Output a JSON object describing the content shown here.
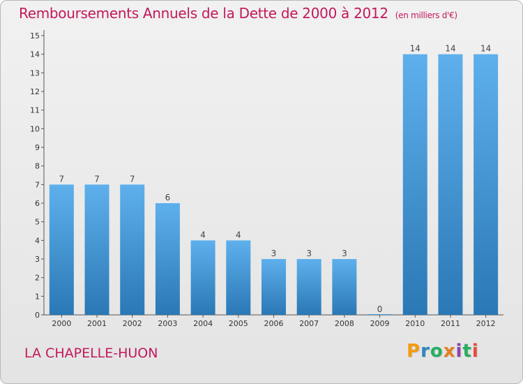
{
  "header": {
    "title": "Remboursements Annuels de la Dette de 2000 à 2012",
    "unit": "(en milliers d'€)"
  },
  "footer": {
    "city": "LA CHAPELLE-HUON",
    "logo_letters": [
      "P",
      "r",
      "o",
      "x",
      "i",
      "t",
      "i"
    ]
  },
  "colors": {
    "title": "#c2185b",
    "bar_top": "#5eb0ec",
    "bar_bottom": "#2a78b5",
    "logo": [
      "#f39c12",
      "#2e86c1",
      "#27ae60",
      "#e67e22",
      "#8e44ad",
      "#27ae60",
      "#e74c3c"
    ]
  },
  "chart_data": {
    "type": "bar",
    "title": "Remboursements Annuels de la Dette de 2000 à 2012",
    "xlabel": "",
    "ylabel": "(en milliers d'€)",
    "categories": [
      "2000",
      "2001",
      "2002",
      "2003",
      "2004",
      "2005",
      "2006",
      "2007",
      "2008",
      "2009",
      "2010",
      "2011",
      "2012"
    ],
    "values": [
      7,
      7,
      7,
      6,
      4,
      4,
      3,
      3,
      3,
      0,
      14,
      14,
      14
    ],
    "ylim": [
      0,
      15
    ],
    "yticks": [
      0,
      1,
      2,
      3,
      4,
      5,
      6,
      7,
      8,
      9,
      10,
      11,
      12,
      13,
      14,
      15
    ],
    "grid": false,
    "legend": "none"
  }
}
